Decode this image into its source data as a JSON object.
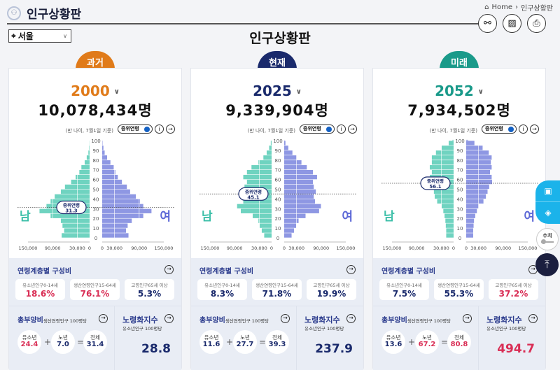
{
  "header": {
    "app_title": "인구상황판",
    "breadcrumb": [
      "Home",
      "인구상황판"
    ],
    "page_title": "인구상황판",
    "region": "서울"
  },
  "icons": {
    "logo": "person-cycle-icon",
    "tools": [
      "share-icon",
      "image-icon",
      "print-icon"
    ],
    "floating": [
      "chart-board-icon",
      "layers-icon",
      "scroll-top-icon"
    ]
  },
  "floating": {
    "toggle_label": "수치"
  },
  "colors": {
    "past": "#e07b1a",
    "present": "#1a2a6c",
    "future": "#1a9a8a",
    "male": "#6fd3c0",
    "female": "#8e97e3",
    "highlight": "#d92e55",
    "navy": "#1a2a6c"
  },
  "labels": {
    "basis": "(만 나이, 7월1일 기준)",
    "median_toggle": "중위연령",
    "median": "중위연령",
    "male": "남",
    "female": "여",
    "age_section": "연령계층별 구성비",
    "youth": "유소년인구0-14세",
    "working": "생산연령인구15-64세",
    "elderly": "고령인구65세 이상",
    "dependency": "총부양비",
    "dependency_sub": "생산연령인구 100명당",
    "aging": "노령화지수",
    "aging_sub": "유소년인구 100명당",
    "youth_short": "유소년",
    "elderly_short": "노년",
    "total": "전체",
    "plus": "+",
    "equals": "="
  },
  "panels": [
    {
      "tab": "과거",
      "color": "#e07b1a",
      "year": "2000",
      "population": "10,078,434명",
      "median_age": "31.3",
      "youth_pct": "18.6%",
      "working_pct": "76.1%",
      "elderly_pct": "5.3%",
      "youth_hl": true,
      "working_hl": true,
      "elderly_hl": false,
      "dep_youth": "24.4",
      "dep_elderly": "7.0",
      "dep_total": "31.4",
      "dy_hl": true,
      "de_hl": false,
      "dt_hl": false,
      "aging_index": "28.8",
      "aging_hl": false
    },
    {
      "tab": "현재",
      "color": "#1a2a6c",
      "year": "2025",
      "population": "9,339,904명",
      "median_age": "45.1",
      "youth_pct": "8.3%",
      "working_pct": "71.8%",
      "elderly_pct": "19.9%",
      "youth_hl": false,
      "working_hl": false,
      "elderly_hl": false,
      "dep_youth": "11.6",
      "dep_elderly": "27.7",
      "dep_total": "39.3",
      "dy_hl": false,
      "de_hl": false,
      "dt_hl": false,
      "aging_index": "237.9",
      "aging_hl": false
    },
    {
      "tab": "미래",
      "color": "#1a9a8a",
      "year": "2052",
      "population": "7,934,502명",
      "median_age": "56.1",
      "youth_pct": "7.5%",
      "working_pct": "55.3%",
      "elderly_pct": "37.2%",
      "youth_hl": false,
      "working_hl": false,
      "elderly_hl": true,
      "dep_youth": "13.6",
      "dep_elderly": "67.2",
      "dep_total": "80.8",
      "dy_hl": false,
      "de_hl": true,
      "dt_hl": true,
      "aging_index": "494.7",
      "aging_hl": true
    }
  ],
  "chart_data": [
    {
      "type": "bar",
      "orientation": "horizontal-pyramid",
      "year": "2000",
      "x_ticks": [
        "150,000",
        "90,000",
        "30,000",
        "0",
        "0",
        "30,000",
        "90,000",
        "150,000"
      ],
      "y_ticks": [
        "0",
        "10",
        "20",
        "30",
        "40",
        "50",
        "60",
        "70",
        "80",
        "90",
        "100"
      ],
      "age_groups": [
        0,
        5,
        10,
        15,
        20,
        25,
        30,
        35,
        40,
        45,
        50,
        55,
        60,
        65,
        70,
        75,
        80,
        85,
        90,
        95,
        100
      ],
      "median_age": 31.3,
      "series": [
        {
          "name": "남",
          "values": [
            68000,
            62000,
            66000,
            70000,
            95000,
            122000,
            105000,
            95000,
            85000,
            70000,
            60000,
            45000,
            34000,
            25000,
            20000,
            12000,
            7000,
            3000,
            1000,
            300,
            50
          ]
        },
        {
          "name": "여",
          "values": [
            64000,
            58000,
            62000,
            72000,
            100000,
            120000,
            100000,
            92000,
            82000,
            68000,
            60000,
            48000,
            38000,
            32000,
            28000,
            20000,
            12000,
            6000,
            3000,
            800,
            100
          ]
        }
      ]
    },
    {
      "type": "bar",
      "orientation": "horizontal-pyramid",
      "year": "2025",
      "x_ticks": [
        "150,000",
        "90,000",
        "30,000",
        "0",
        "0",
        "30,000",
        "90,000",
        "150,000"
      ],
      "y_ticks": [
        "0",
        "10",
        "20",
        "30",
        "40",
        "50",
        "60",
        "70",
        "80",
        "90",
        "100"
      ],
      "age_groups": [
        0,
        5,
        10,
        15,
        20,
        25,
        30,
        35,
        40,
        45,
        50,
        55,
        60,
        65,
        70,
        75,
        80,
        85,
        90,
        95,
        100
      ],
      "median_age": 45.1,
      "series": [
        {
          "name": "남",
          "values": [
            18000,
            24000,
            29000,
            32000,
            46000,
            75000,
            84000,
            69000,
            66000,
            72000,
            66000,
            60000,
            69000,
            60000,
            49000,
            32000,
            20000,
            12000,
            6000,
            2000,
            300
          ]
        },
        {
          "name": "여",
          "values": [
            18000,
            24000,
            29000,
            35000,
            52000,
            85000,
            90000,
            75000,
            72000,
            77000,
            72000,
            70000,
            80000,
            70000,
            55000,
            42000,
            30000,
            20000,
            10000,
            3000,
            500
          ]
        }
      ]
    },
    {
      "type": "bar",
      "orientation": "horizontal-pyramid",
      "year": "2052",
      "x_ticks": [
        "150,000",
        "90,000",
        "30,000",
        "0",
        "0",
        "30,000",
        "90,000",
        "150,000"
      ],
      "y_ticks": [
        "0",
        "10",
        "20",
        "30",
        "40",
        "50",
        "60",
        "70",
        "80",
        "90",
        "100"
      ],
      "age_groups": [
        0,
        5,
        10,
        15,
        20,
        25,
        30,
        35,
        40,
        45,
        50,
        55,
        60,
        65,
        70,
        75,
        80,
        85,
        90,
        95,
        100
      ],
      "median_age": 56.1,
      "series": [
        {
          "name": "남",
          "values": [
            18000,
            18000,
            19000,
            20000,
            22000,
            25000,
            29000,
            40000,
            46000,
            48000,
            52000,
            60000,
            58000,
            53000,
            58000,
            53000,
            53000,
            43000,
            29000,
            12000,
            3000
          ]
        },
        {
          "name": "여",
          "values": [
            17000,
            17000,
            18000,
            19000,
            22000,
            26000,
            30000,
            42000,
            48000,
            52000,
            56000,
            63000,
            62000,
            58000,
            62000,
            60000,
            62000,
            55000,
            40000,
            20000,
            5000
          ]
        }
      ]
    }
  ]
}
